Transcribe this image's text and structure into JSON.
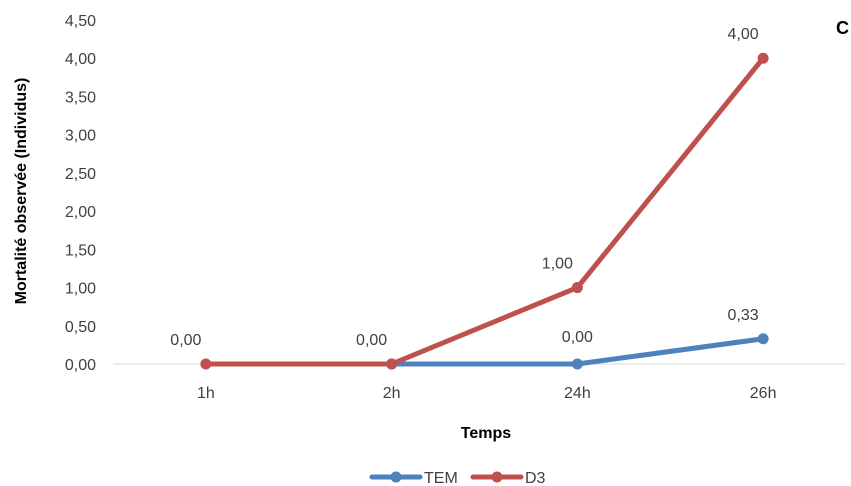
{
  "panel_label": "C",
  "chart_data": {
    "type": "line",
    "categories": [
      "1h",
      "2h",
      "24h",
      "26h"
    ],
    "series": [
      {
        "name": "TEM",
        "values": [
          null,
          0.0,
          0.0,
          0.33
        ],
        "labels": [
          "",
          "",
          "",
          "0,33"
        ],
        "color": "#4f81bd"
      },
      {
        "name": "D3",
        "values": [
          0.0,
          0.0,
          1.0,
          4.0
        ],
        "labels": [
          "0,00",
          "0,00",
          "1,00",
          "4,00"
        ],
        "color": "#c0504d"
      }
    ],
    "extra_labels": [
      {
        "category": "24h",
        "value": 0.0,
        "text": "0,00"
      }
    ],
    "xlabel": "Temps",
    "ylabel": "Mortalité observée (Individus)",
    "ylim": [
      0,
      4.5
    ],
    "yticks": [
      "0,00",
      "0,50",
      "1,00",
      "1,50",
      "2,00",
      "2,50",
      "3,00",
      "3,50",
      "4,00",
      "4,50"
    ],
    "grid": false,
    "legend": "bottom"
  }
}
